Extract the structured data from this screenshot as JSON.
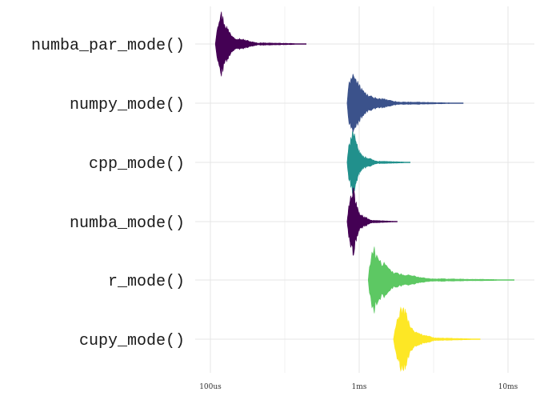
{
  "chart_data": {
    "type": "violin",
    "title": "",
    "xlabel": "",
    "ylabel": "",
    "x_scale": "log10",
    "x_unit": "seconds",
    "xlim": [
      0.0001,
      0.012
    ],
    "x_ticks": [
      {
        "value": 0.0001,
        "label": "100us"
      },
      {
        "value": 0.001,
        "label": "1ms"
      },
      {
        "value": 0.01,
        "label": "10ms"
      }
    ],
    "grid": true,
    "legend": "none",
    "categories": [
      "numba_par_mode()",
      "numpy_mode()",
      "cpp_mode()",
      "numba_mode()",
      "r_mode()",
      "cupy_mode()"
    ],
    "series": [
      {
        "category": "numba_par_mode()",
        "color": "#440154",
        "min": 0.000108,
        "mode": 0.000118,
        "max": 0.00044
      },
      {
        "category": "numpy_mode()",
        "color": "#3b528b",
        "min": 0.00083,
        "mode": 0.0009,
        "max": 0.005
      },
      {
        "category": "cpp_mode()",
        "color": "#21908c",
        "min": 0.00083,
        "mode": 0.00091,
        "max": 0.0022
      },
      {
        "category": "numba_mode()",
        "color": "#440154",
        "min": 0.00083,
        "mode": 0.00092,
        "max": 0.0018
      },
      {
        "category": "r_mode()",
        "color": "#5dc863",
        "min": 0.00115,
        "mode": 0.00125,
        "max": 0.011
      },
      {
        "category": "cupy_mode()",
        "color": "#fde725",
        "min": 0.0017,
        "mode": 0.002,
        "max": 0.0065
      }
    ]
  }
}
